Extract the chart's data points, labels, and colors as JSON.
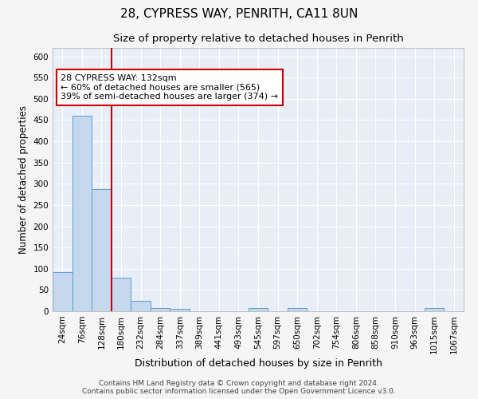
{
  "title": "28, CYPRESS WAY, PENRITH, CA11 8UN",
  "subtitle": "Size of property relative to detached houses in Penrith",
  "xlabel": "Distribution of detached houses by size in Penrith",
  "ylabel": "Number of detached properties",
  "footer_line1": "Contains HM Land Registry data © Crown copyright and database right 2024.",
  "footer_line2": "Contains public sector information licensed under the Open Government Licence v3.0.",
  "categories": [
    "24sqm",
    "76sqm",
    "128sqm",
    "180sqm",
    "232sqm",
    "284sqm",
    "337sqm",
    "389sqm",
    "441sqm",
    "493sqm",
    "545sqm",
    "597sqm",
    "650sqm",
    "702sqm",
    "754sqm",
    "806sqm",
    "858sqm",
    "910sqm",
    "963sqm",
    "1015sqm",
    "1067sqm"
  ],
  "values": [
    93,
    460,
    287,
    78,
    24,
    8,
    5,
    0,
    0,
    0,
    7,
    0,
    8,
    0,
    0,
    0,
    0,
    0,
    0,
    7,
    0
  ],
  "bar_color": "#c5d8ee",
  "bar_edge_color": "#5a9fd4",
  "bar_edge_width": 0.7,
  "red_line_x": 2.5,
  "red_line_color": "#cc0000",
  "annotation_text": "28 CYPRESS WAY: 132sqm\n← 60% of detached houses are smaller (565)\n39% of semi-detached houses are larger (374) →",
  "annotation_box_color": "#ffffff",
  "annotation_box_edge_color": "#cc0000",
  "ylim": [
    0,
    620
  ],
  "yticks": [
    0,
    50,
    100,
    150,
    200,
    250,
    300,
    350,
    400,
    450,
    500,
    550,
    600
  ],
  "bg_color": "#e8eef8",
  "grid_color": "#ffffff",
  "fig_bg_color": "#f5f5f5",
  "title_fontsize": 11,
  "subtitle_fontsize": 9.5,
  "xlabel_fontsize": 9,
  "ylabel_fontsize": 8.5,
  "tick_fontsize": 7.5,
  "footer_fontsize": 6.5
}
